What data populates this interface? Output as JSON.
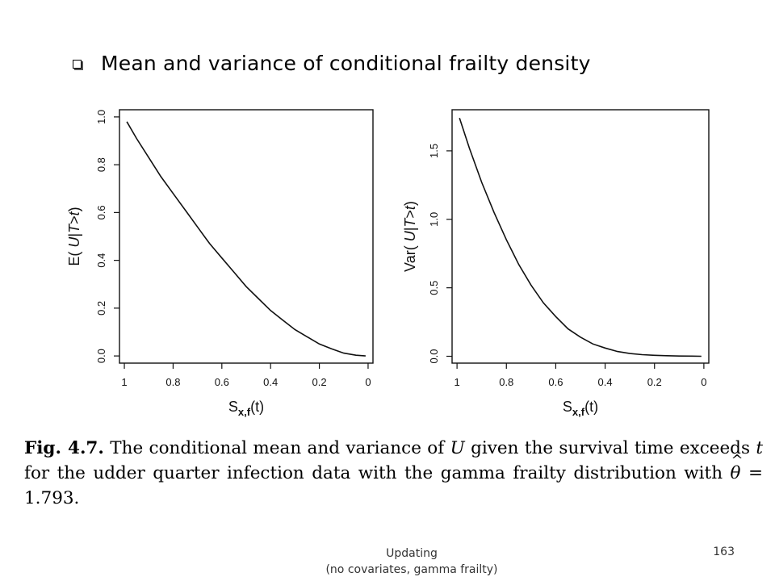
{
  "slide": {
    "heading": "Mean and variance of conditional frailty density",
    "caption": {
      "fig_label": "Fig. 4.7.",
      "text_1": "The conditional mean and variance of",
      "var_U": "U",
      "text_2": "given the survival time exceeds",
      "var_t": "t",
      "text_3": "for the udder quarter infection data with the gamma frailty distribution with",
      "theta": "θ",
      "theta_value": "= 1.793."
    },
    "footer_line1": "Updating",
    "footer_line2": "(no covariates, gamma frailty)",
    "page_number": "163"
  },
  "chart_data": [
    {
      "type": "line",
      "title": "",
      "xlabel_main": "S",
      "xlabel_sub": "x,f",
      "xlabel_tail": "(t)",
      "ylabel_pre": "E( ",
      "ylabel_mid": "U",
      "ylabel_bar": "|",
      "ylabel_T": "T",
      "ylabel_gt": ">",
      "ylabel_t": "t",
      "ylabel_post": ")",
      "xlim": [
        1.02,
        -0.02
      ],
      "ylim": [
        -0.03,
        1.03
      ],
      "x_ticks": [
        1,
        0.8,
        0.6,
        0.4,
        0.2,
        0
      ],
      "x_tick_labels": [
        "1",
        "0.8",
        "0.6",
        "0.4",
        "0.2",
        "0"
      ],
      "y_ticks": [
        0.0,
        0.2,
        0.4,
        0.6,
        0.8,
        1.0
      ],
      "y_tick_labels": [
        "0.0",
        "0.2",
        "0.4",
        "0.6",
        "0.8",
        "1.0"
      ],
      "grid": false,
      "series": [
        {
          "x": [
            0.99,
            0.95,
            0.9,
            0.85,
            0.8,
            0.75,
            0.7,
            0.65,
            0.6,
            0.55,
            0.5,
            0.45,
            0.4,
            0.35,
            0.3,
            0.25,
            0.2,
            0.15,
            0.1,
            0.05,
            0.01
          ],
          "y": [
            0.98,
            0.91,
            0.83,
            0.75,
            0.68,
            0.61,
            0.54,
            0.47,
            0.41,
            0.35,
            0.29,
            0.24,
            0.19,
            0.15,
            0.11,
            0.08,
            0.05,
            0.03,
            0.012,
            0.003,
            0.0
          ]
        }
      ]
    },
    {
      "type": "line",
      "title": "",
      "xlabel_main": "S",
      "xlabel_sub": "x,f",
      "xlabel_tail": "(t)",
      "ylabel_pre": "Var( ",
      "ylabel_mid": "U",
      "ylabel_bar": "|",
      "ylabel_T": "T",
      "ylabel_gt": ">",
      "ylabel_t": "t",
      "ylabel_post": ")",
      "xlim": [
        1.02,
        -0.02
      ],
      "ylim": [
        -0.05,
        1.8
      ],
      "x_ticks": [
        1,
        0.8,
        0.6,
        0.4,
        0.2,
        0
      ],
      "x_tick_labels": [
        "1",
        "0.8",
        "0.6",
        "0.4",
        "0.2",
        "0"
      ],
      "y_ticks": [
        0.0,
        0.5,
        1.0,
        1.5
      ],
      "y_tick_labels": [
        "0.0",
        "0.5",
        "1.0",
        "1.5"
      ],
      "grid": false,
      "series": [
        {
          "x": [
            0.99,
            0.95,
            0.9,
            0.85,
            0.8,
            0.75,
            0.7,
            0.65,
            0.6,
            0.55,
            0.5,
            0.45,
            0.4,
            0.35,
            0.3,
            0.25,
            0.2,
            0.15,
            0.1,
            0.05,
            0.01
          ],
          "y": [
            1.74,
            1.52,
            1.27,
            1.05,
            0.85,
            0.67,
            0.52,
            0.39,
            0.29,
            0.2,
            0.14,
            0.09,
            0.06,
            0.035,
            0.02,
            0.012,
            0.007,
            0.004,
            0.002,
            0.001,
            0.0
          ]
        }
      ]
    }
  ]
}
